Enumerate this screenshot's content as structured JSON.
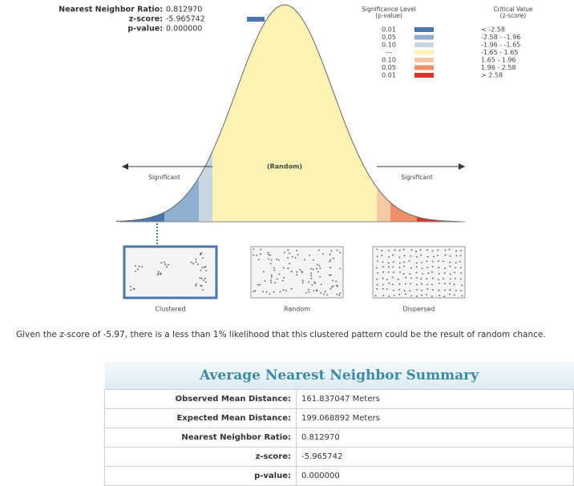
{
  "report": {
    "ratio_label": "Nearest Neighbor Ratio:",
    "ratio": "0.812970",
    "z_label": "z-score:",
    "z": "-5.965742",
    "p_label": "p-value:",
    "p": "0.000000"
  },
  "legend": {
    "significance_header": [
      "Significance Level",
      "(p-value)"
    ],
    "critical_header": [
      "Critical Value",
      "(z-score)"
    ],
    "rows": [
      {
        "p": "0.01",
        "color": "#4a77a8",
        "z": "< -2.58"
      },
      {
        "p": "0.05",
        "color": "#8fb0cf",
        "z": "-2.58 - -1.96"
      },
      {
        "p": "0.10",
        "color": "#c9d6df",
        "z": "-1.96 - -1.65"
      },
      {
        "p": "---",
        "color": "#fbf3b4",
        "z": "-1.65 - 1.65"
      },
      {
        "p": "0.10",
        "color": "#f6c9a6",
        "z": "1.65 - 1.96"
      },
      {
        "p": "0.05",
        "color": "#ee8e6b",
        "z": "1.96 - 2.58"
      },
      {
        "p": "0.01",
        "color": "#d8362c",
        "z": "> 2.58"
      }
    ]
  },
  "curve": {
    "left": "Significant",
    "center": "(Random)",
    "right": "Significant"
  },
  "patterns": [
    "Clustered",
    "Random",
    "Dispersed"
  ],
  "message": "Given the z-score of -5.97, there is a less than 1% likelihood that this clustered pattern could be the result of random chance.",
  "summary": {
    "title": "Average Nearest Neighbor Summary",
    "rows": [
      [
        "Observed Mean Distance:",
        "161.837047 Meters"
      ],
      [
        "Expected Mean Distance:",
        "199.068892 Meters"
      ],
      [
        "Nearest Neighbor Ratio:",
        "0.812970"
      ],
      [
        "z-score:",
        "-5.965742"
      ],
      [
        "p-value:",
        "0.000000"
      ]
    ]
  }
}
